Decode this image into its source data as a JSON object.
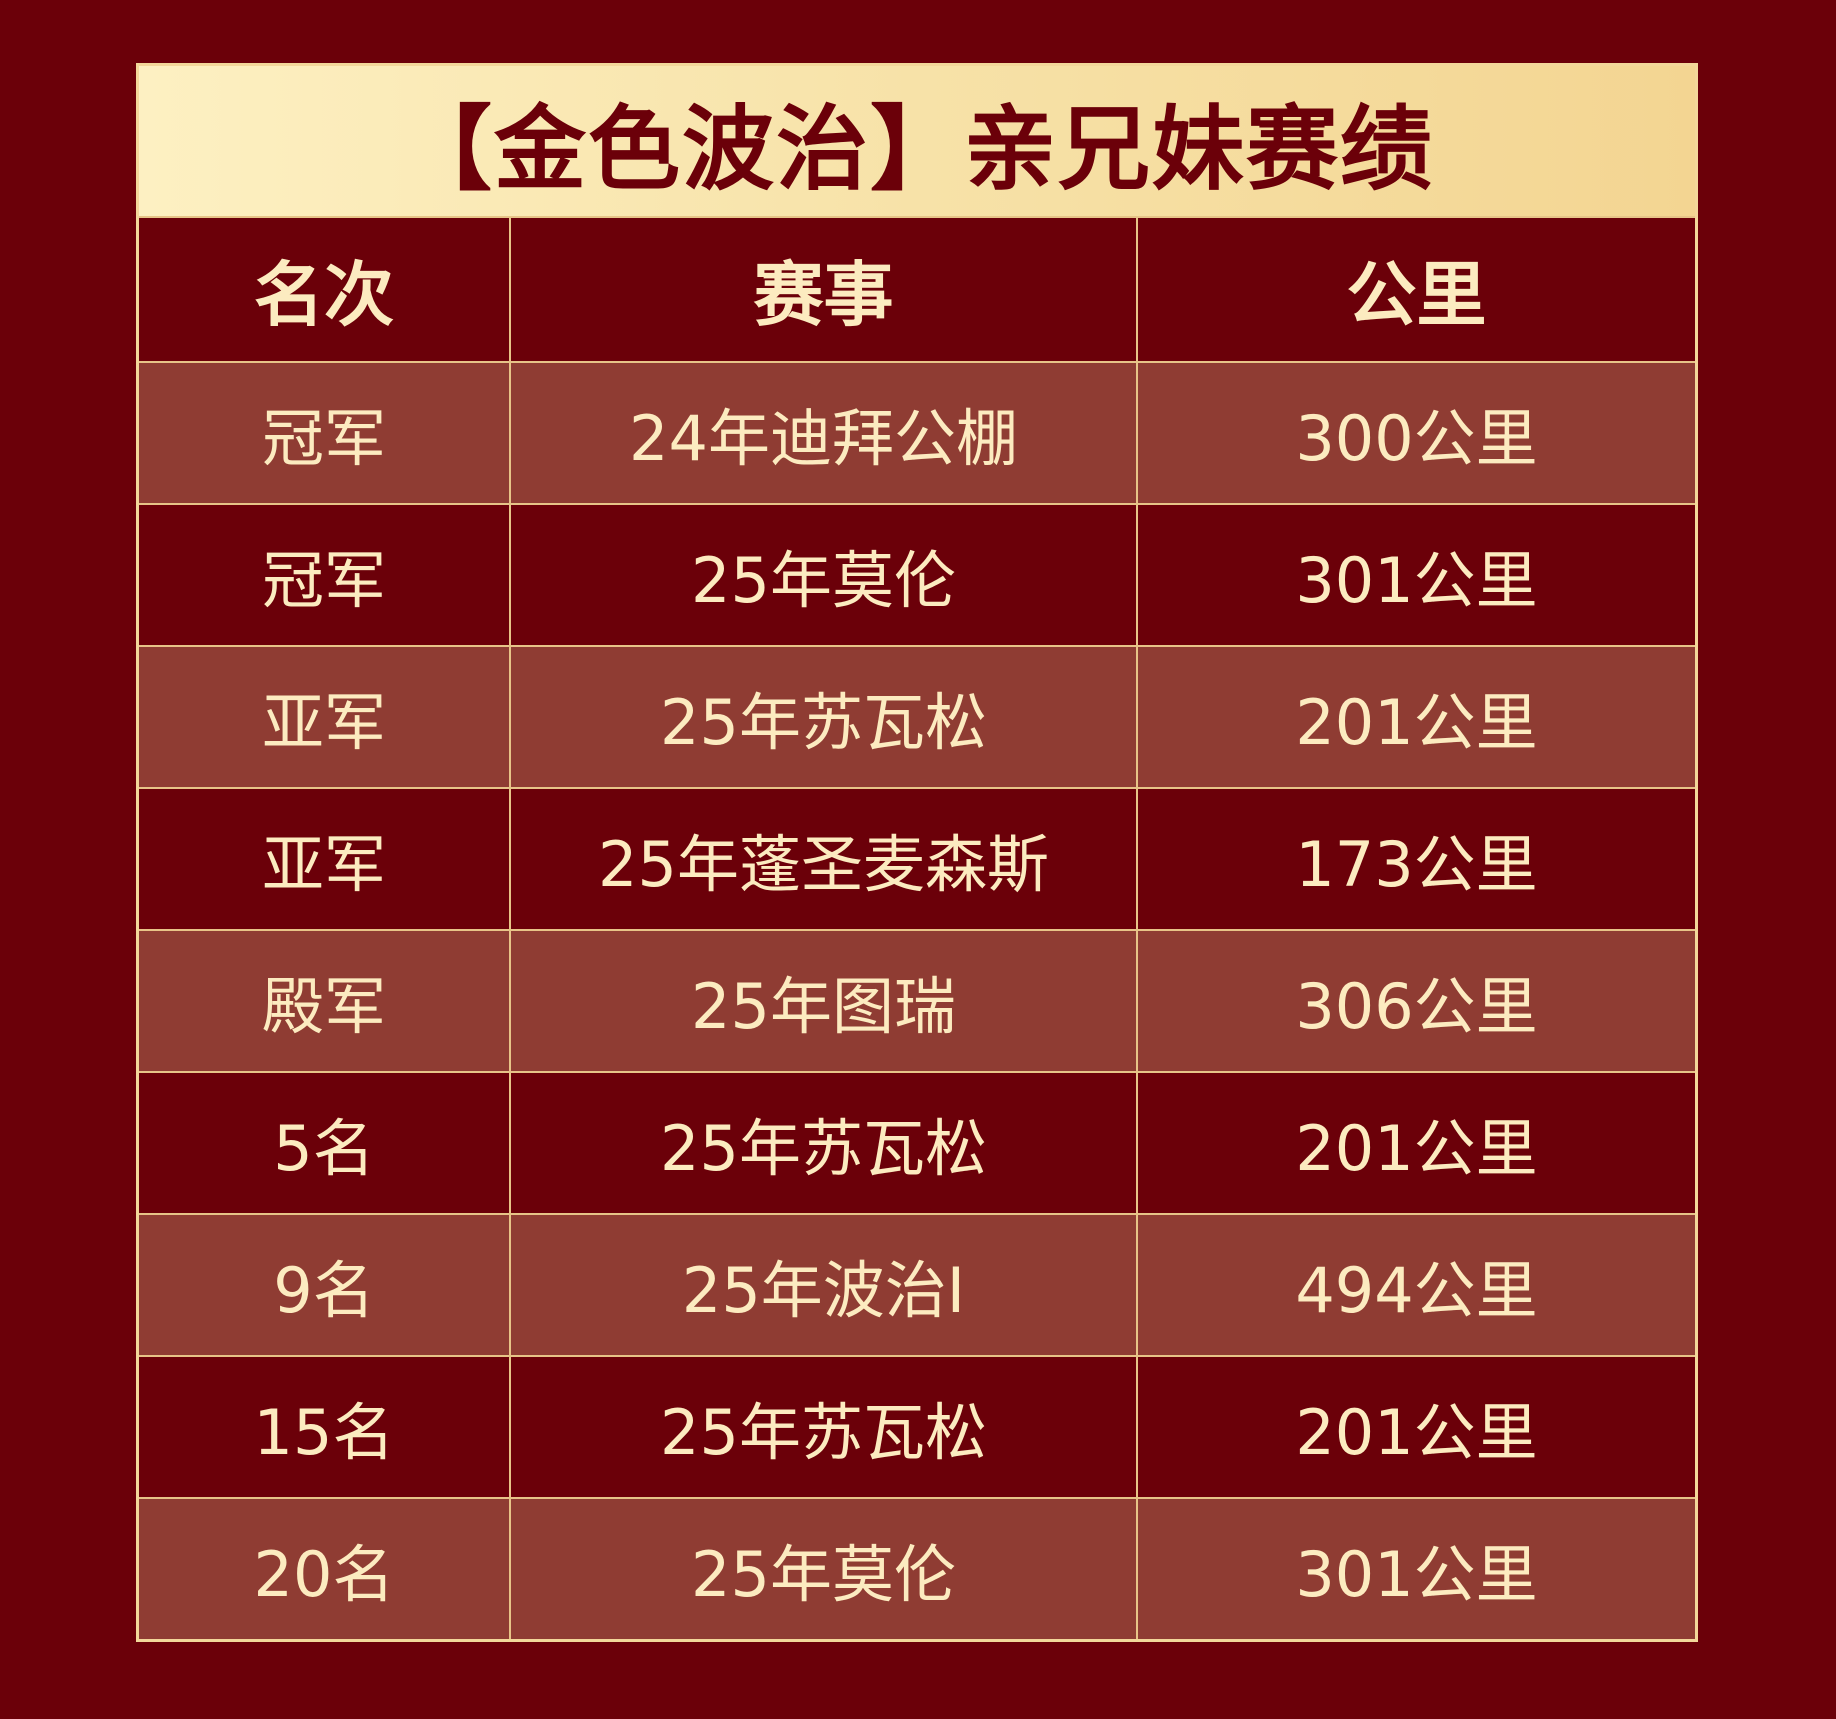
{
  "title": "【金色波治】亲兄妹赛绩",
  "headers": [
    "名次",
    "赛事",
    "公里"
  ],
  "rows": [
    {
      "rank": "冠军",
      "race": "24年迪拜公棚",
      "distance": "300公里"
    },
    {
      "rank": "冠军",
      "race": "25年莫伦",
      "distance": "301公里"
    },
    {
      "rank": "亚军",
      "race": "25年苏瓦松",
      "distance": "201公里"
    },
    {
      "rank": "亚军",
      "race": "25年蓬圣麦森斯",
      "distance": "173公里"
    },
    {
      "rank": "殿军",
      "race": "25年图瑞",
      "distance": "306公里"
    },
    {
      "rank": "5名",
      "race": "25年苏瓦松",
      "distance": "201公里"
    },
    {
      "rank": "9名",
      "race": "25年波治Ⅰ",
      "distance": "494公里"
    },
    {
      "rank": "15名",
      "race": "25年苏瓦松",
      "distance": "201公里"
    },
    {
      "rank": "20名",
      "race": "25年莫伦",
      "distance": "301公里"
    }
  ],
  "colors": {
    "background": "#6b0009",
    "row_alt": "#8f3c33",
    "text": "#fcebc0",
    "border": "#e7c488",
    "title_bg": "#f7e2a8"
  }
}
